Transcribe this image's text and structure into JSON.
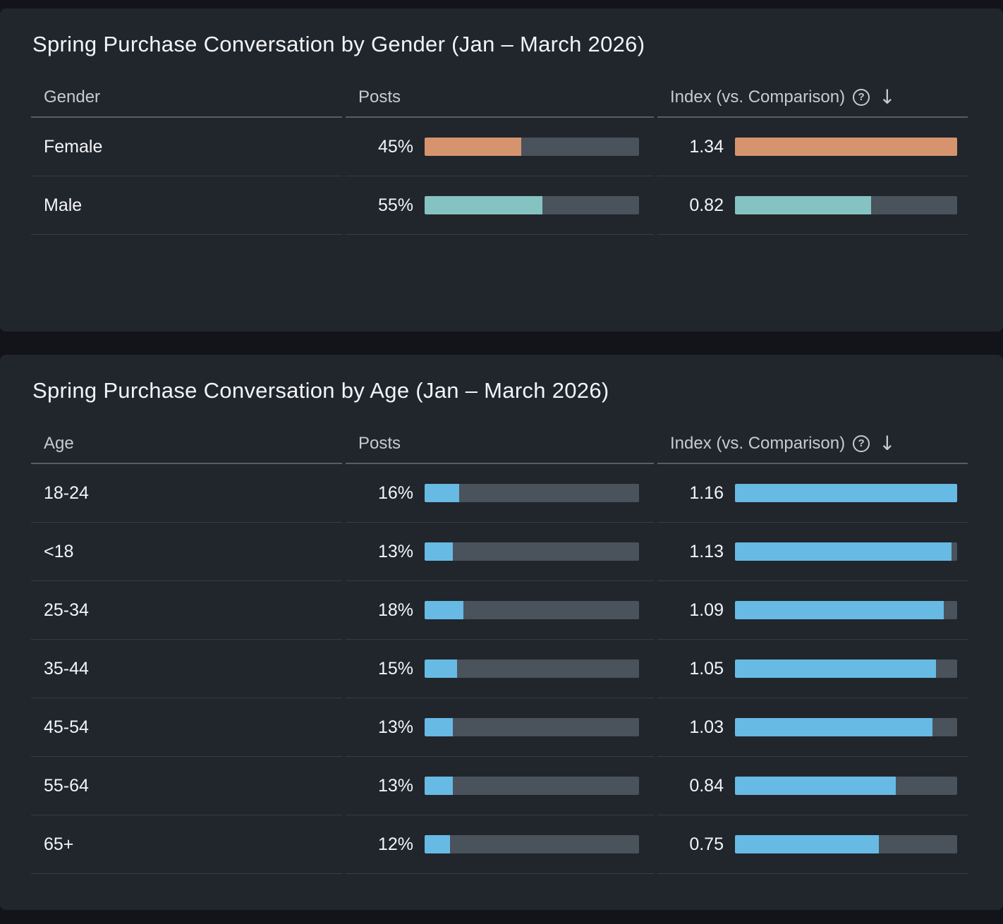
{
  "colors": {
    "page_bg": "#121419",
    "panel_bg": "#21252C",
    "bar_track": "#4A525C",
    "female_orange": "#D6946E",
    "male_teal": "#85C2C2",
    "age_blue": "#67BAE4"
  },
  "icons": {
    "help": "?",
    "sort_desc": "↓"
  },
  "panels": [
    {
      "title": "Spring Purchase Conversation by Gender (Jan – March 2026)",
      "columns": [
        "Gender",
        "Posts",
        "Index (vs. Comparison)"
      ],
      "rows": [
        {
          "label": "Female",
          "posts_label": "45%",
          "posts_pct": 45,
          "index_label": "1.34",
          "index_value": 1.34,
          "bar_color": "#D6946E"
        },
        {
          "label": "Male",
          "posts_label": "55%",
          "posts_pct": 55,
          "index_label": "0.82",
          "index_value": 0.82,
          "bar_color": "#85C2C2"
        }
      ]
    },
    {
      "title": "Spring Purchase Conversation by Age (Jan – March 2026)",
      "columns": [
        "Age",
        "Posts",
        "Index (vs. Comparison)"
      ],
      "rows": [
        {
          "label": "18-24",
          "posts_label": "16%",
          "posts_pct": 16,
          "index_label": "1.16",
          "index_value": 1.16,
          "bar_color": "#67BAE4"
        },
        {
          "label": "<18",
          "posts_label": "13%",
          "posts_pct": 13,
          "index_label": "1.13",
          "index_value": 1.13,
          "bar_color": "#67BAE4"
        },
        {
          "label": "25-34",
          "posts_label": "18%",
          "posts_pct": 18,
          "index_label": "1.09",
          "index_value": 1.09,
          "bar_color": "#67BAE4"
        },
        {
          "label": "35-44",
          "posts_label": "15%",
          "posts_pct": 15,
          "index_label": "1.05",
          "index_value": 1.05,
          "bar_color": "#67BAE4"
        },
        {
          "label": "45-54",
          "posts_label": "13%",
          "posts_pct": 13,
          "index_label": "1.03",
          "index_value": 1.03,
          "bar_color": "#67BAE4"
        },
        {
          "label": "55-64",
          "posts_label": "13%",
          "posts_pct": 13,
          "index_label": "0.84",
          "index_value": 0.84,
          "bar_color": "#67BAE4"
        },
        {
          "label": "65+",
          "posts_label": "12%",
          "posts_pct": 12,
          "index_label": "0.75",
          "index_value": 0.75,
          "bar_color": "#67BAE4"
        }
      ]
    }
  ],
  "chart_data": [
    {
      "type": "bar",
      "orientation": "horizontal",
      "title": "Spring Purchase Conversation by Gender (Jan – March 2026)",
      "categories": [
        "Female",
        "Male"
      ],
      "series": [
        {
          "name": "Posts",
          "unit": "%",
          "values": [
            45,
            55
          ]
        },
        {
          "name": "Index (vs. Comparison)",
          "values": [
            1.34,
            0.82
          ]
        }
      ],
      "sort": "index descending",
      "notes": "Index bars scaled relative to max index (1.34); Female colored orange, Male teal"
    },
    {
      "type": "bar",
      "orientation": "horizontal",
      "title": "Spring Purchase Conversation by Age (Jan – March 2026)",
      "categories": [
        "18-24",
        "<18",
        "25-34",
        "35-44",
        "45-54",
        "55-64",
        "65+"
      ],
      "series": [
        {
          "name": "Posts",
          "unit": "%",
          "values": [
            16,
            13,
            18,
            15,
            13,
            13,
            12
          ]
        },
        {
          "name": "Index (vs. Comparison)",
          "values": [
            1.16,
            1.13,
            1.09,
            1.05,
            1.03,
            0.84,
            0.75
          ]
        }
      ],
      "sort": "index descending",
      "notes": "All bars blue; index bars scaled relative to max index (1.16)"
    }
  ]
}
